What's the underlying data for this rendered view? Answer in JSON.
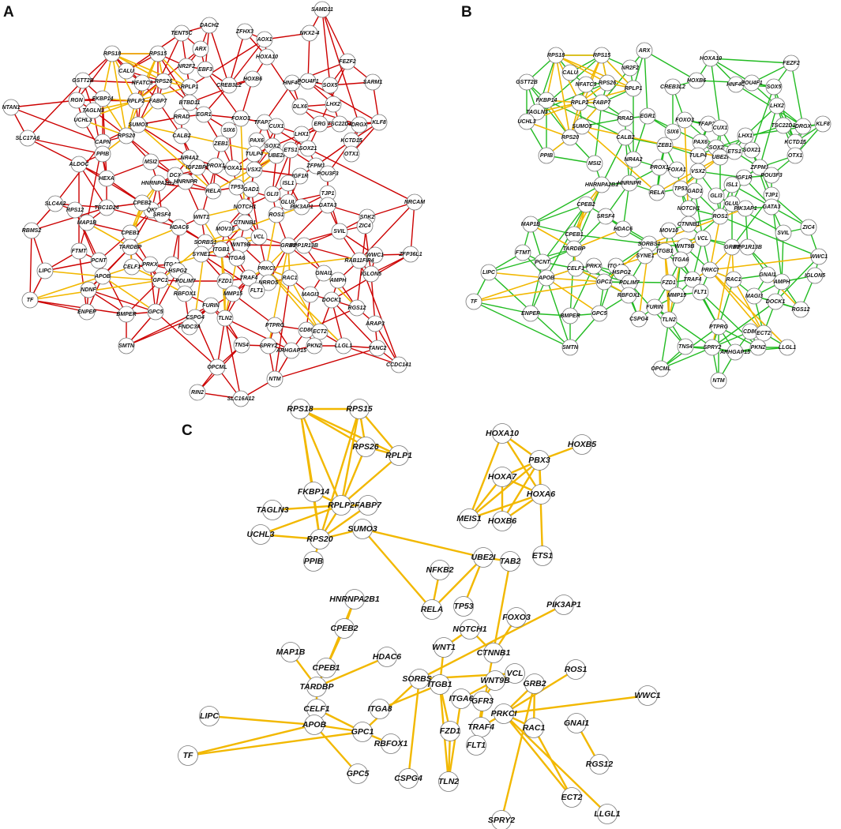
{
  "panels": [
    {
      "label": "A",
      "nodes": [
        "SAMD11",
        "DACH2",
        "TENT5C",
        "ZFHX3",
        "AOX1",
        "NKX2-4",
        "ARX",
        "HOXA10",
        "RPS18",
        "RPS15",
        "NR2F2",
        "EBF3",
        "FEZF2",
        "CALU",
        "RPS26",
        "NFATC3",
        "HNF4G",
        "POU4F1",
        "SOX5",
        "SARM1",
        "GSTT2B",
        "RPLP1",
        "CREB3L2",
        "HOXB6",
        "FKBP14",
        "RPLP2",
        "FABP7",
        "BTBD11",
        "LHX2",
        "NTAN1",
        "RGN",
        "UCHL3",
        "TAGLN3",
        "SUMO3",
        "RRAD",
        "EGR1",
        "DLX6",
        "FOXO3",
        "SIX6",
        "TFAP2A",
        "ERG",
        "TSC22D1",
        "DRGX",
        "KLF8",
        "CAPN",
        "RPS20",
        "CALB2",
        "CUX1",
        "PAX6",
        "KCTD15",
        "SLC17A6",
        "LHX1",
        "ZEB1",
        "SOX2",
        "OTX1",
        "ALDOC",
        "PPIB",
        "TULP4",
        "UBE2I",
        "SOX21",
        "ETS1",
        "MSI2",
        "NR4A2",
        "IGF2BP1",
        "PROX1",
        "FOXA1",
        "VSX2",
        "ZFPM1",
        "IGF1R",
        "POU3F3",
        "HEXA",
        "HNRNPA2B1",
        "DCX",
        "HNRNPR",
        "ISL1",
        "QKI",
        "CPEB2",
        "TP53",
        "GAD1",
        "RELA",
        "TJP1",
        "GLI3",
        "NRCAM",
        "GLUL",
        "PIK3AP1",
        "GATA3",
        "SLC4A2",
        "RPS12",
        "TBC1D24",
        "SRSF4",
        "WNT1",
        "NOTCH1",
        "ROS1",
        "SDK2",
        "ZIC4",
        "MAP1B",
        "CTNNB1",
        "CPEB1",
        "HDAC6",
        "MOV10",
        "SVIL",
        "RBMS2",
        "FTMT",
        "TARDBP",
        "VCL",
        "WNT9B",
        "GRB2",
        "PPP1R13B",
        "SORBS1",
        "WWC1",
        "ZFP36L1",
        "PCNT",
        "ITGB1",
        "RAB11FIP4",
        "LIPC",
        "PRKX",
        "CELF1",
        "ITGA8",
        "SYNE1",
        "ITGA6",
        "PRKCI",
        "HSPG2",
        "GNAI1",
        "IGLON5",
        "APOB",
        "GPC1",
        "PDLIM7",
        "AMPH",
        "NDNF",
        "RAC1",
        "FZD1",
        "TRAF4",
        "NRROS",
        "MMP15",
        "FLT1",
        "RBFOX1",
        "MAGI3",
        "DOCK1",
        "RGS12",
        "TF",
        "GPC5",
        "ENPEP",
        "CSPG4",
        "BMPER",
        "TLN2",
        "FURIN",
        "FNDC3A",
        "ARAP3",
        "PTPRG",
        "CD86",
        "ECT2",
        "PKN2",
        "SMTN",
        "LLGL1",
        "TANC2",
        "TNS4",
        "SPRY2",
        "ARHGAP15",
        "CCDC141",
        "OPCML",
        "NTM",
        "RIN2",
        "SLC16A12"
      ]
    },
    {
      "label": "B",
      "nodes": [
        "RPS18",
        "RPS15",
        "NR2F2",
        "ARX",
        "HOXA10",
        "FEZF2",
        "CALU",
        "RPS26",
        "NFATC3",
        "HNF4G",
        "POU4F1",
        "SOX5",
        "GSTT2B",
        "RPLP1",
        "CREB3L2",
        "HOXB6",
        "FKBP14",
        "RPLP2",
        "FABP7",
        "LHX2",
        "TAGLN3",
        "SUMO3",
        "RRAD",
        "EGR1",
        "FOXO3",
        "SIX6",
        "TFAP2A",
        "TSC22D1",
        "DRGX",
        "KLF8",
        "UCHL3",
        "RPS20",
        "CALB2",
        "CUX1",
        "PAX6",
        "KCTD15",
        "LHX1",
        "ZEB1",
        "SOX2",
        "OTX1",
        "PPIB",
        "TULP4",
        "UBE2I",
        "SOX21",
        "ETS1",
        "MSI2",
        "NR4A2",
        "PROX1",
        "FOXA1",
        "VSX2",
        "ZFPM1",
        "IGF1R",
        "POU3F3",
        "HNRNPA2B1",
        "HNRNPR",
        "ISL1",
        "CPEB2",
        "TP53",
        "GAD1",
        "RELA",
        "TJP1",
        "GLI3",
        "GLUL",
        "PIK3AP1",
        "GATA3",
        "SRSF4",
        "NOTCH1",
        "ROS1",
        "ZIC4",
        "MAP1B",
        "CTNNB1",
        "CPEB1",
        "HDAC6",
        "MOV10",
        "SVIL",
        "FTMT",
        "TARDBP",
        "VCL",
        "WNT9B",
        "GRB2",
        "PPP1R13B",
        "SORBS1",
        "WWC1",
        "PCNT",
        "ITGB1",
        "LIPC",
        "PRKX",
        "CELF1",
        "ITGA8",
        "SYNE1",
        "ITGA6",
        "PRKCI",
        "HSPG2",
        "GNAI1",
        "IGLON5",
        "APOB",
        "GPC1",
        "PDLIM7",
        "AMPH",
        "RAC1",
        "FZD1",
        "TRAF4",
        "FLT1",
        "MMP15",
        "RBFOX1",
        "MAGI3",
        "DOCK1",
        "RGS12",
        "TF",
        "GPC5",
        "ENPEP",
        "CSPG4",
        "BMPER",
        "TLN2",
        "FURIN",
        "PTPRG",
        "CD86",
        "ECT2",
        "PKN2",
        "SMTN",
        "LLGL1",
        "TNS4",
        "SPRY2",
        "ARHGAP15",
        "OPCML",
        "NTM"
      ]
    },
    {
      "label": "C",
      "nodes": [
        "RPS18",
        "RPS15",
        "RPS26",
        "RPLP1",
        "FKBP14",
        "RPLP2",
        "FABP7",
        "TAGLN3",
        "SUMO3",
        "RPS20",
        "UCHL3",
        "PPIB",
        "HOXA10",
        "PBX3",
        "HOXB5",
        "HOXA7",
        "HOXA6",
        "MEIS1",
        "HOXB6",
        "ETS1",
        "UBE2I",
        "TAB2",
        "NFKB2",
        "TP53",
        "RELA",
        "HNRNPA2B1",
        "FOXO3",
        "PIK3AP1",
        "CPEB2",
        "NOTCH1",
        "HDAC6",
        "MAP1B",
        "WNT1",
        "CTNNB1",
        "CPEB1",
        "VCL",
        "WNT9B",
        "SORBS1",
        "TARDBP",
        "GRB2",
        "ROS1",
        "ITGB1",
        "ITGA6",
        "GFR3",
        "WWC1",
        "CELF1",
        "ITGA8",
        "PRKCI",
        "TRAF4",
        "LIPC",
        "APOB",
        "GPC1",
        "RAC1",
        "GNAI1",
        "FZD1",
        "RBFOX1",
        "FLT1",
        "TF",
        "GPC5",
        "RGS12",
        "CSPG4",
        "TLN2",
        "ECT2",
        "SPRY2",
        "LLGL1"
      ]
    }
  ]
}
